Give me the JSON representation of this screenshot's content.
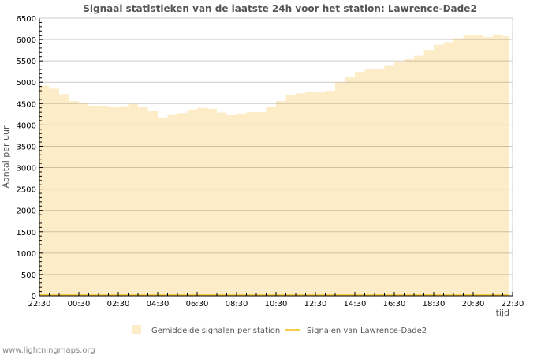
{
  "chart_data": {
    "type": "area",
    "title": "Signaal statistieken van de laatste 24h voor het station: Lawrence-Dade2",
    "xlabel": "tijd",
    "ylabel": "Aantal per uur",
    "ylim": [
      0,
      6500
    ],
    "yticks": [
      "0",
      "500",
      "1000",
      "1500",
      "2000",
      "2500",
      "3000",
      "3500",
      "4000",
      "4500",
      "5000",
      "5500",
      "6000",
      "6500"
    ],
    "xticks": [
      "22:30",
      "00:30",
      "02:30",
      "04:30",
      "06:30",
      "08:30",
      "10:30",
      "12:30",
      "14:30",
      "16:30",
      "18:30",
      "20:30",
      "22:30"
    ],
    "x_step_minutes": 30,
    "grid": true,
    "legend_position": "bottom",
    "series": [
      {
        "name": "Gemiddelde signalen per station",
        "kind": "area",
        "color": "#fdecc8",
        "values": [
          4920,
          4850,
          4720,
          4560,
          4500,
          4450,
          4450,
          4430,
          4440,
          4490,
          4430,
          4320,
          4170,
          4230,
          4280,
          4360,
          4400,
          4380,
          4290,
          4230,
          4270,
          4300,
          4300,
          4420,
          4560,
          4700,
          4740,
          4770,
          4780,
          4800,
          5000,
          5120,
          5240,
          5300,
          5300,
          5380,
          5470,
          5540,
          5620,
          5740,
          5880,
          5940,
          6030,
          6110,
          6110,
          6060,
          6120,
          6090,
          6060
        ]
      },
      {
        "name": "Signalen van Lawrence-Dade2",
        "kind": "line",
        "color": "#f7cd4a",
        "values": [
          0,
          0,
          0,
          0,
          0,
          0,
          0,
          0,
          0,
          0,
          0,
          0,
          0,
          0,
          0,
          0,
          0,
          0,
          0,
          0,
          0,
          0,
          0,
          0,
          0,
          0,
          0,
          0,
          0,
          0,
          0,
          0,
          0,
          0,
          0,
          0,
          0,
          0,
          0,
          0,
          0,
          0,
          0,
          0,
          0,
          0,
          0,
          0,
          0
        ]
      }
    ]
  },
  "footer": "www.lightningmaps.org"
}
